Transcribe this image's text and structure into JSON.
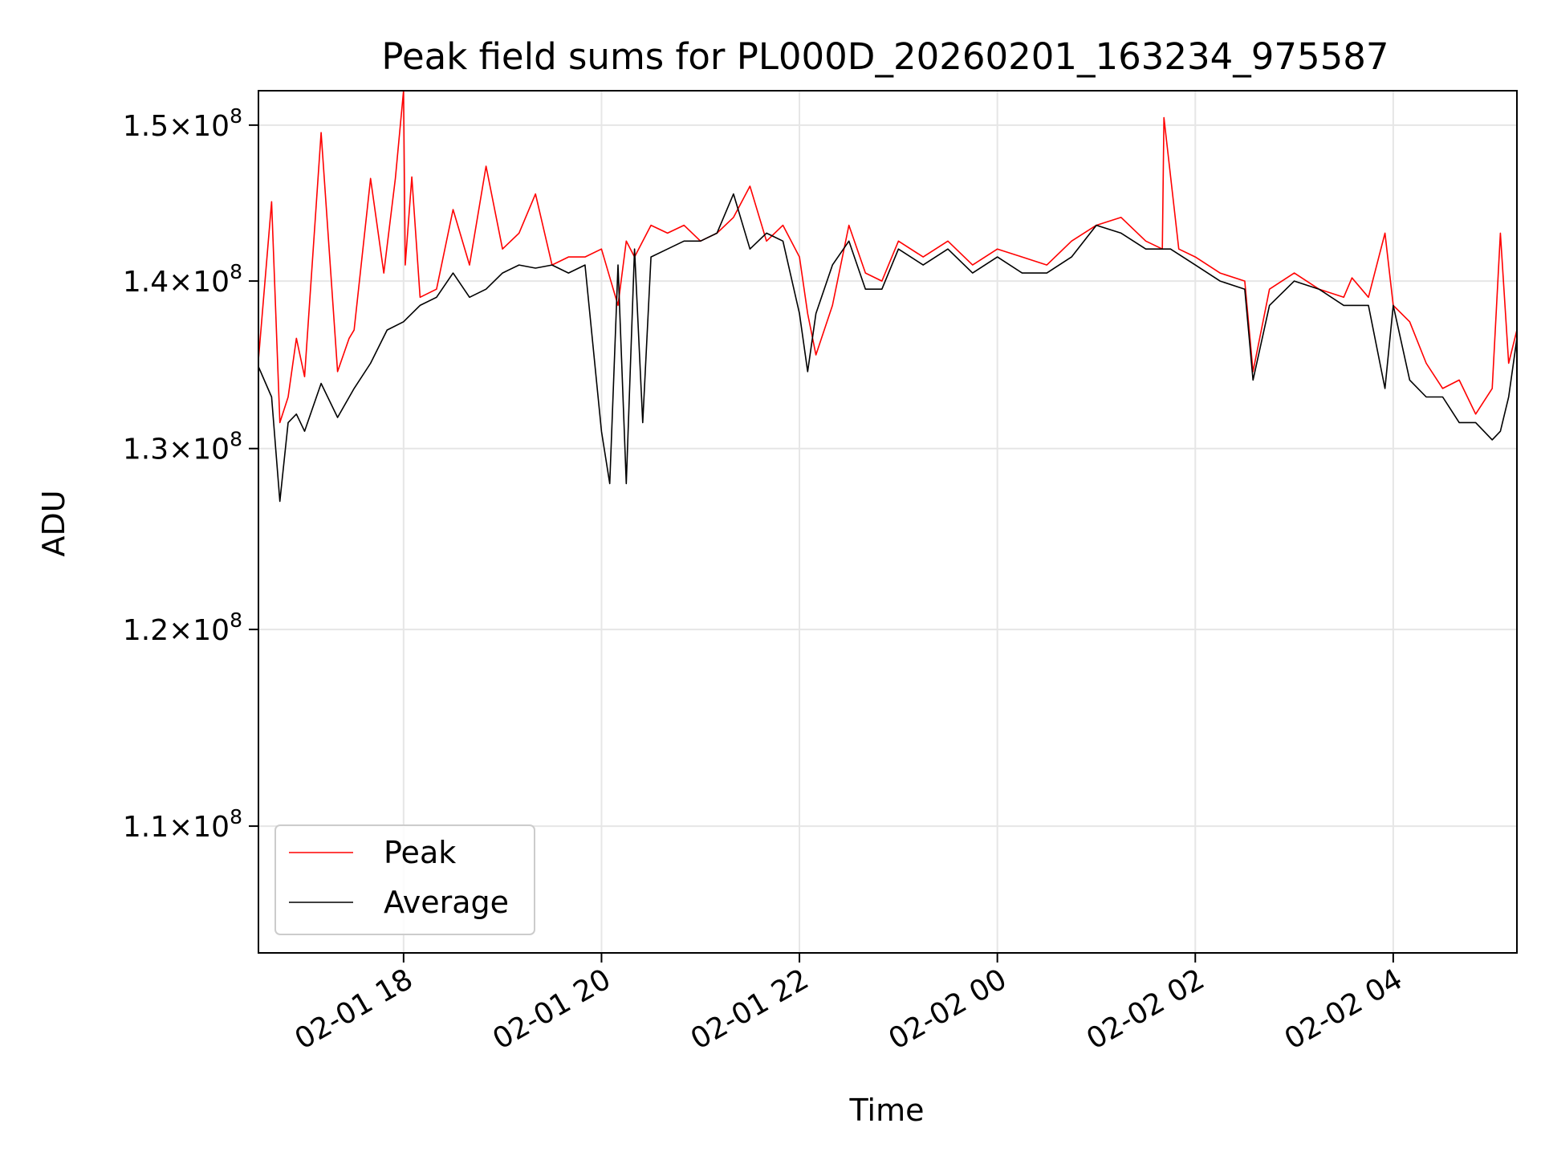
{
  "chart_data": {
    "type": "line",
    "title": "Peak field sums for PL000D_20260201_163234_975587",
    "xlabel": "Time",
    "ylabel": "ADU",
    "x_type": "datetime",
    "xlim": [
      "2026-02-01T16:32",
      "2026-02-02T05:15"
    ],
    "ylim": [
      104000000,
      152300000
    ],
    "yscale": "log",
    "grid": true,
    "legend_position": "lower-left",
    "x_ticks": [
      {
        "value": "2026-02-01T18:00",
        "label": "02-01 18"
      },
      {
        "value": "2026-02-01T20:00",
        "label": "02-01 20"
      },
      {
        "value": "2026-02-01T22:00",
        "label": "02-01 22"
      },
      {
        "value": "2026-02-02T00:00",
        "label": "02-02 00"
      },
      {
        "value": "2026-02-02T02:00",
        "label": "02-02 02"
      },
      {
        "value": "2026-02-02T04:00",
        "label": "02-02 04"
      }
    ],
    "y_ticks": [
      {
        "value": 110000000,
        "mantissa": "1.1",
        "exp": "8"
      },
      {
        "value": 120000000,
        "mantissa": "1.2",
        "exp": "8"
      },
      {
        "value": 130000000,
        "mantissa": "1.3",
        "exp": "8"
      },
      {
        "value": 140000000,
        "mantissa": "1.4",
        "exp": "8"
      },
      {
        "value": 150000000,
        "mantissa": "1.5",
        "exp": "8"
      }
    ],
    "series": [
      {
        "name": "Peak",
        "color": "#ff0000",
        "x": [
          "2026-02-01T16:32",
          "2026-02-01T16:40",
          "2026-02-01T16:45",
          "2026-02-01T16:50",
          "2026-02-01T16:55",
          "2026-02-01T17:00",
          "2026-02-01T17:10",
          "2026-02-01T17:20",
          "2026-02-01T17:27",
          "2026-02-01T17:30",
          "2026-02-01T17:40",
          "2026-02-01T17:48",
          "2026-02-01T17:55",
          "2026-02-01T18:00",
          "2026-02-01T18:01",
          "2026-02-01T18:05",
          "2026-02-01T18:10",
          "2026-02-01T18:20",
          "2026-02-01T18:30",
          "2026-02-01T18:40",
          "2026-02-01T18:50",
          "2026-02-01T19:00",
          "2026-02-01T19:10",
          "2026-02-01T19:20",
          "2026-02-01T19:30",
          "2026-02-01T19:40",
          "2026-02-01T19:50",
          "2026-02-01T20:00",
          "2026-02-01T20:10",
          "2026-02-01T20:15",
          "2026-02-01T20:20",
          "2026-02-01T20:30",
          "2026-02-01T20:40",
          "2026-02-01T20:50",
          "2026-02-01T21:00",
          "2026-02-01T21:10",
          "2026-02-01T21:20",
          "2026-02-01T21:30",
          "2026-02-01T21:40",
          "2026-02-01T21:50",
          "2026-02-01T22:00",
          "2026-02-01T22:05",
          "2026-02-01T22:10",
          "2026-02-01T22:20",
          "2026-02-01T22:30",
          "2026-02-01T22:40",
          "2026-02-01T22:50",
          "2026-02-01T23:00",
          "2026-02-01T23:15",
          "2026-02-01T23:30",
          "2026-02-01T23:45",
          "2026-02-02T00:00",
          "2026-02-02T00:15",
          "2026-02-02T00:30",
          "2026-02-02T00:45",
          "2026-02-02T01:00",
          "2026-02-02T01:15",
          "2026-02-02T01:30",
          "2026-02-02T01:40",
          "2026-02-02T01:41",
          "2026-02-02T01:50",
          "2026-02-02T02:00",
          "2026-02-02T02:15",
          "2026-02-02T02:30",
          "2026-02-02T02:35",
          "2026-02-02T02:45",
          "2026-02-02T03:00",
          "2026-02-02T03:15",
          "2026-02-02T03:30",
          "2026-02-02T03:35",
          "2026-02-02T03:45",
          "2026-02-02T03:55",
          "2026-02-02T04:00",
          "2026-02-02T04:10",
          "2026-02-02T04:20",
          "2026-02-02T04:30",
          "2026-02-02T04:40",
          "2026-02-02T04:50",
          "2026-02-02T05:00",
          "2026-02-02T05:05",
          "2026-02-02T05:10",
          "2026-02-02T05:15"
        ],
        "values": [
          135200000,
          145000000,
          131500000,
          133000000,
          136500000,
          134200000,
          149500000,
          134500000,
          136500000,
          137000000,
          146500000,
          140500000,
          146500000,
          152300000,
          141000000,
          146600000,
          139000000,
          139500000,
          144500000,
          141000000,
          147300000,
          142000000,
          143000000,
          145500000,
          141000000,
          141500000,
          141500000,
          142000000,
          138500000,
          142500000,
          141500000,
          143500000,
          143000000,
          143500000,
          142500000,
          143000000,
          144000000,
          146000000,
          142500000,
          143500000,
          141500000,
          138000000,
          135500000,
          138500000,
          143500000,
          140500000,
          140000000,
          142500000,
          141500000,
          142500000,
          141000000,
          142000000,
          141500000,
          141000000,
          142500000,
          143500000,
          144000000,
          142500000,
          142000000,
          150500000,
          142000000,
          141500000,
          140500000,
          140000000,
          134500000,
          139500000,
          140500000,
          139500000,
          139000000,
          140200000,
          139000000,
          143000000,
          138500000,
          137500000,
          135000000,
          133500000,
          134000000,
          132000000,
          133500000,
          143000000,
          135000000,
          137000000
        ]
      },
      {
        "name": "Average",
        "color": "#000000",
        "x": [
          "2026-02-01T16:32",
          "2026-02-01T16:40",
          "2026-02-01T16:45",
          "2026-02-01T16:50",
          "2026-02-01T16:55",
          "2026-02-01T17:00",
          "2026-02-01T17:10",
          "2026-02-01T17:20",
          "2026-02-01T17:30",
          "2026-02-01T17:40",
          "2026-02-01T17:50",
          "2026-02-01T18:00",
          "2026-02-01T18:10",
          "2026-02-01T18:20",
          "2026-02-01T18:30",
          "2026-02-01T18:40",
          "2026-02-01T18:50",
          "2026-02-01T19:00",
          "2026-02-01T19:10",
          "2026-02-01T19:20",
          "2026-02-01T19:30",
          "2026-02-01T19:40",
          "2026-02-01T19:50",
          "2026-02-01T20:00",
          "2026-02-01T20:05",
          "2026-02-01T20:10",
          "2026-02-01T20:15",
          "2026-02-01T20:20",
          "2026-02-01T20:25",
          "2026-02-01T20:30",
          "2026-02-01T20:40",
          "2026-02-01T20:50",
          "2026-02-01T21:00",
          "2026-02-01T21:10",
          "2026-02-01T21:20",
          "2026-02-01T21:30",
          "2026-02-01T21:40",
          "2026-02-01T21:50",
          "2026-02-01T22:00",
          "2026-02-01T22:05",
          "2026-02-01T22:10",
          "2026-02-01T22:20",
          "2026-02-01T22:30",
          "2026-02-01T22:40",
          "2026-02-01T22:50",
          "2026-02-01T23:00",
          "2026-02-01T23:15",
          "2026-02-01T23:30",
          "2026-02-01T23:45",
          "2026-02-02T00:00",
          "2026-02-02T00:15",
          "2026-02-02T00:30",
          "2026-02-02T00:45",
          "2026-02-02T01:00",
          "2026-02-02T01:15",
          "2026-02-02T01:30",
          "2026-02-02T01:45",
          "2026-02-02T02:00",
          "2026-02-02T02:15",
          "2026-02-02T02:30",
          "2026-02-02T02:35",
          "2026-02-02T02:45",
          "2026-02-02T03:00",
          "2026-02-02T03:15",
          "2026-02-02T03:30",
          "2026-02-02T03:45",
          "2026-02-02T03:55",
          "2026-02-02T04:00",
          "2026-02-02T04:10",
          "2026-02-02T04:20",
          "2026-02-02T04:30",
          "2026-02-02T04:40",
          "2026-02-02T04:50",
          "2026-02-02T05:00",
          "2026-02-02T05:05",
          "2026-02-02T05:10",
          "2026-02-02T05:15"
        ],
        "values": [
          134800000,
          133000000,
          127000000,
          131500000,
          132000000,
          131000000,
          133800000,
          131800000,
          133500000,
          135000000,
          137000000,
          137500000,
          138500000,
          139000000,
          140500000,
          139000000,
          139500000,
          140500000,
          141000000,
          140800000,
          141000000,
          140500000,
          141000000,
          131000000,
          128000000,
          141000000,
          128000000,
          142000000,
          131500000,
          141500000,
          142000000,
          142500000,
          142500000,
          143000000,
          145500000,
          142000000,
          143000000,
          142500000,
          138000000,
          134500000,
          138000000,
          141000000,
          142500000,
          139500000,
          139500000,
          142000000,
          141000000,
          142000000,
          140500000,
          141500000,
          140500000,
          140500000,
          141500000,
          143500000,
          143000000,
          142000000,
          142000000,
          141000000,
          140000000,
          139500000,
          134000000,
          138500000,
          140000000,
          139500000,
          138500000,
          138500000,
          133500000,
          138500000,
          134000000,
          133000000,
          133000000,
          131500000,
          131500000,
          130500000,
          131000000,
          133000000,
          136500000
        ]
      }
    ]
  }
}
